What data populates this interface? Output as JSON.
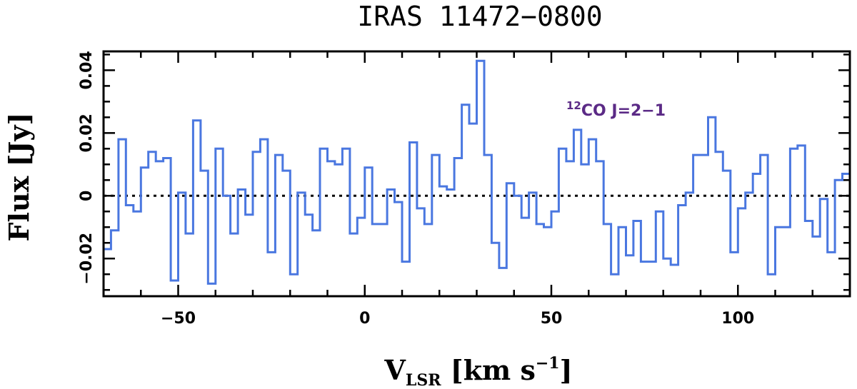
{
  "chart_data": {
    "type": "line",
    "style": "step",
    "title": "IRAS 11472−0800",
    "xlabel": {
      "main": "V",
      "sub": "LSR",
      "unit": " [km s",
      "sup": "−1",
      "close": "]"
    },
    "ylabel": "Flux [Jy]",
    "xlim": [
      -70,
      130
    ],
    "ylim": [
      -0.032,
      0.046
    ],
    "x_tick_values": [
      -50,
      0,
      50,
      100
    ],
    "x_tick_labels": [
      "−50",
      "0",
      "50",
      "100"
    ],
    "y_tick_values": [
      -0.02,
      0,
      0.02,
      0.04
    ],
    "y_tick_labels": [
      "−0.02",
      "0",
      "0.02",
      "0.04"
    ],
    "baseline": 0,
    "annotation": {
      "sup": "12",
      "text": "CO J=2−1",
      "color": "#5b2a86"
    },
    "series": [
      {
        "color": "#4a77e0",
        "x_edges": [
          -70,
          -68,
          -66,
          -64,
          -62,
          -60,
          -58,
          -56,
          -54,
          -52,
          -50,
          -48,
          -46,
          -44,
          -42,
          -40,
          -38,
          -36,
          -34,
          -32,
          -30,
          -28,
          -26,
          -24,
          -22,
          -20,
          -18,
          -16,
          -14,
          -12,
          -10,
          -8,
          -6,
          -4,
          -2,
          0,
          2,
          4,
          6,
          8,
          10,
          12,
          14,
          16,
          18,
          20,
          22,
          24,
          26,
          28,
          30,
          32,
          34,
          36,
          38,
          40,
          42,
          44,
          46,
          48,
          50,
          52,
          54,
          56,
          58,
          60,
          62,
          64,
          66,
          68,
          70,
          72,
          74,
          76,
          78,
          80,
          82,
          84,
          86,
          88,
          90,
          92,
          94,
          96,
          98,
          100,
          102,
          104,
          106,
          108,
          110,
          112,
          114,
          116,
          118,
          120,
          122,
          124,
          126,
          128,
          130
        ],
        "values": [
          -0.017,
          -0.011,
          0.018,
          -0.003,
          -0.005,
          0.009,
          0.014,
          0.011,
          0.012,
          -0.027,
          0.001,
          -0.012,
          0.024,
          0.008,
          -0.028,
          0.015,
          0,
          -0.012,
          0.002,
          -0.006,
          0.014,
          0.018,
          -0.018,
          0.013,
          0.008,
          -0.025,
          0.001,
          -0.006,
          -0.011,
          0.015,
          0.011,
          0.01,
          0.015,
          -0.012,
          -0.007,
          0.009,
          -0.009,
          -0.009,
          0.002,
          -0.002,
          -0.021,
          0.017,
          -0.004,
          -0.009,
          0.013,
          0.003,
          0.002,
          0.012,
          0.029,
          0.023,
          0.043,
          0.013,
          -0.015,
          -0.023,
          0.004,
          0,
          -0.007,
          0.001,
          -0.009,
          -0.01,
          -0.005,
          0.015,
          0.011,
          0.021,
          0.01,
          0.018,
          0.011,
          -0.009,
          -0.025,
          -0.01,
          -0.019,
          -0.008,
          -0.021,
          -0.021,
          -0.005,
          -0.02,
          -0.022,
          -0.003,
          0.001,
          0.013,
          0.013,
          0.025,
          0.014,
          0.008,
          -0.018,
          -0.004,
          0.001,
          0.007,
          0.013,
          -0.025,
          -0.01,
          -0.01,
          0.015,
          0.016,
          -0.008,
          -0.013,
          -0.001,
          -0.018,
          0.005,
          0.007,
          0.021
        ]
      }
    ]
  }
}
